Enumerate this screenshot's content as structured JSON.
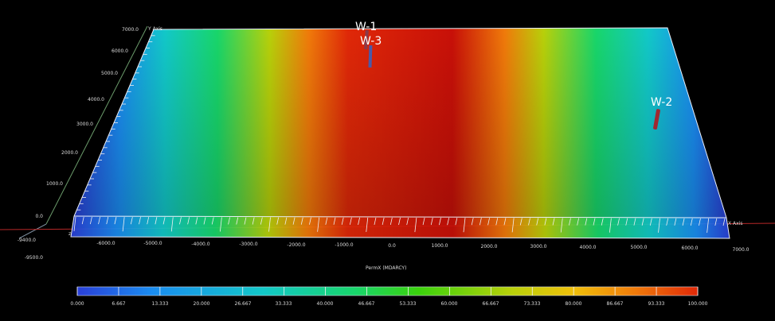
{
  "scene": {
    "background": "#000000",
    "property_name": "PermX (MDARCY)",
    "colormap": [
      "#2a3fd8",
      "#1a8cf0",
      "#12c8c8",
      "#18d66a",
      "#3ad20c",
      "#b8d00a",
      "#f0c00a",
      "#f07a0a",
      "#e02808",
      "#c81008"
    ],
    "field_profile": "peak in the middle of the x range (red), falling to blue at both ends"
  },
  "axes": {
    "y_title": "Y Axis",
    "x_title": "X Axis",
    "y_ticks": [
      "7000.0",
      "6000.0",
      "5000.0",
      "4000.0",
      "3000.0",
      "2000.0",
      "1000.0",
      "0.0"
    ],
    "x_ticks": [
      "-6000.0",
      "-5000.0",
      "-4000.0",
      "-3000.0",
      "-2000.0",
      "-1000.0",
      "0.0",
      "1000.0",
      "2000.0",
      "3000.0",
      "4000.0",
      "5000.0",
      "6000.0",
      "7000.0"
    ],
    "x_title_label": "PermX (MDARCY)",
    "z_ticks": [
      "-9400.0",
      "-9500.0"
    ]
  },
  "wells": [
    {
      "name": "W-1",
      "color": "#8a3a4a"
    },
    {
      "name": "W-3",
      "color": "#4a5aa8"
    },
    {
      "name": "W-2",
      "color": "#a02830"
    }
  ],
  "colorbar": {
    "ticks": [
      "0.000",
      "6.667",
      "13.333",
      "20.000",
      "26.667",
      "33.333",
      "40.000",
      "46.667",
      "53.333",
      "60.000",
      "66.667",
      "73.333",
      "80.000",
      "86.667",
      "93.333",
      "100.000"
    ]
  }
}
